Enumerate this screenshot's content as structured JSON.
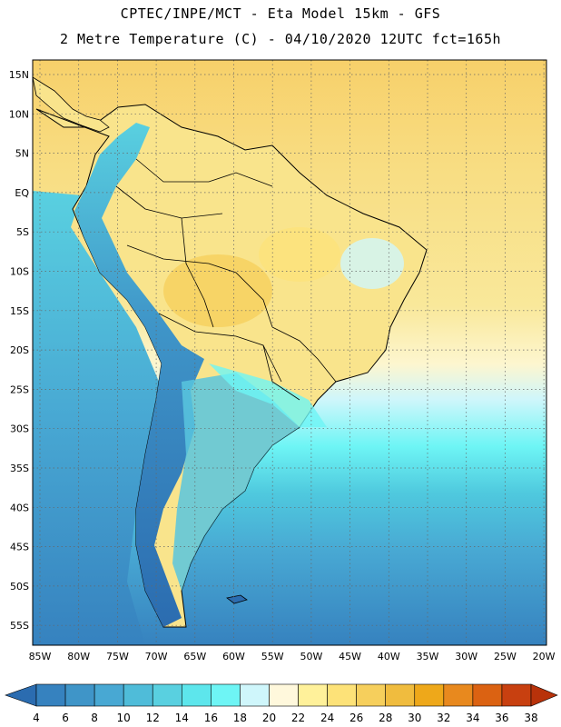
{
  "header": {
    "title_line1": "CPTEC/INPE/MCT -  Eta Model 15km - GFS",
    "title_line2": "2 Metre Temperature (C) - 04/10/2020 12UTC fct=165h"
  },
  "map": {
    "lat_labels": [
      "15N",
      "10N",
      "5N",
      "EQ",
      "5S",
      "10S",
      "15S",
      "20S",
      "25S",
      "30S",
      "35S",
      "40S",
      "45S",
      "50S",
      "55S"
    ],
    "lon_labels": [
      "85W",
      "80W",
      "75W",
      "70W",
      "65W",
      "60W",
      "55W",
      "50W",
      "45W",
      "40W",
      "35W",
      "30W",
      "25W",
      "20W"
    ],
    "gridlines": true,
    "region": "South America"
  },
  "colorbar": {
    "labels": [
      "4",
      "6",
      "8",
      "10",
      "12",
      "14",
      "16",
      "18",
      "20",
      "22",
      "24",
      "26",
      "28",
      "30",
      "32",
      "34",
      "36",
      "38"
    ],
    "colors": [
      "#2b6cb0",
      "#3682bf",
      "#3f95c8",
      "#48a8d3",
      "#4fbcd9",
      "#59d0e0",
      "#5de6ec",
      "#6ef5f5",
      "#cff6fb",
      "#fff8dc",
      "#fff19a",
      "#fde278",
      "#f6cf5c",
      "#f0bc3e",
      "#eea81a",
      "#e8891e",
      "#db6212",
      "#c84010",
      "#b8320a"
    ]
  }
}
